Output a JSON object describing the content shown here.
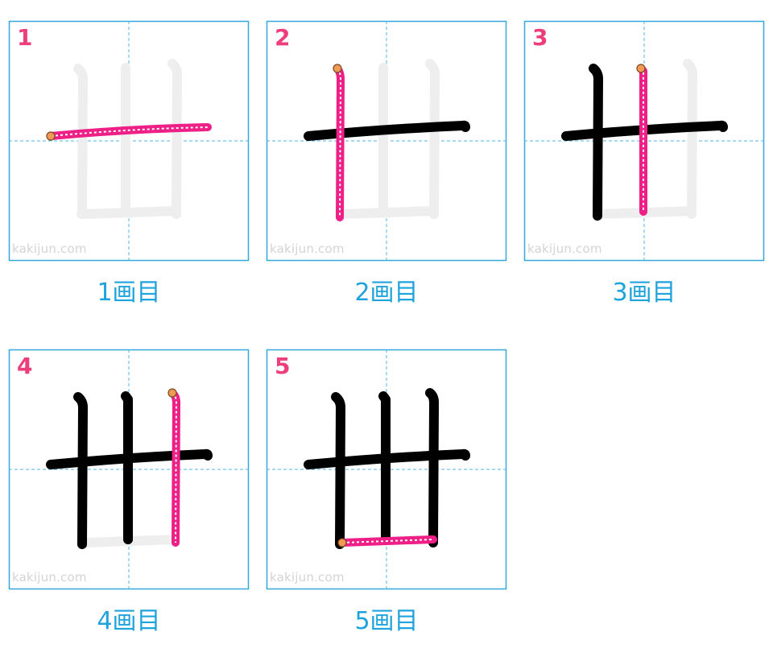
{
  "watermark": "kakijun.com",
  "colors": {
    "border": "#35a9dd",
    "guide": "#4bb5e3",
    "ghost": "#eeeeee",
    "done": "#000000",
    "active": "#ee1f86",
    "dot": "#f19a55",
    "number": "#ee3d7b",
    "caption": "#1fa3dc"
  },
  "panels": [
    {
      "number": "1",
      "caption": "1画目"
    },
    {
      "number": "2",
      "caption": "2画目"
    },
    {
      "number": "3",
      "caption": "3画目"
    },
    {
      "number": "4",
      "caption": "4画目"
    },
    {
      "number": "5",
      "caption": "5画目"
    }
  ]
}
